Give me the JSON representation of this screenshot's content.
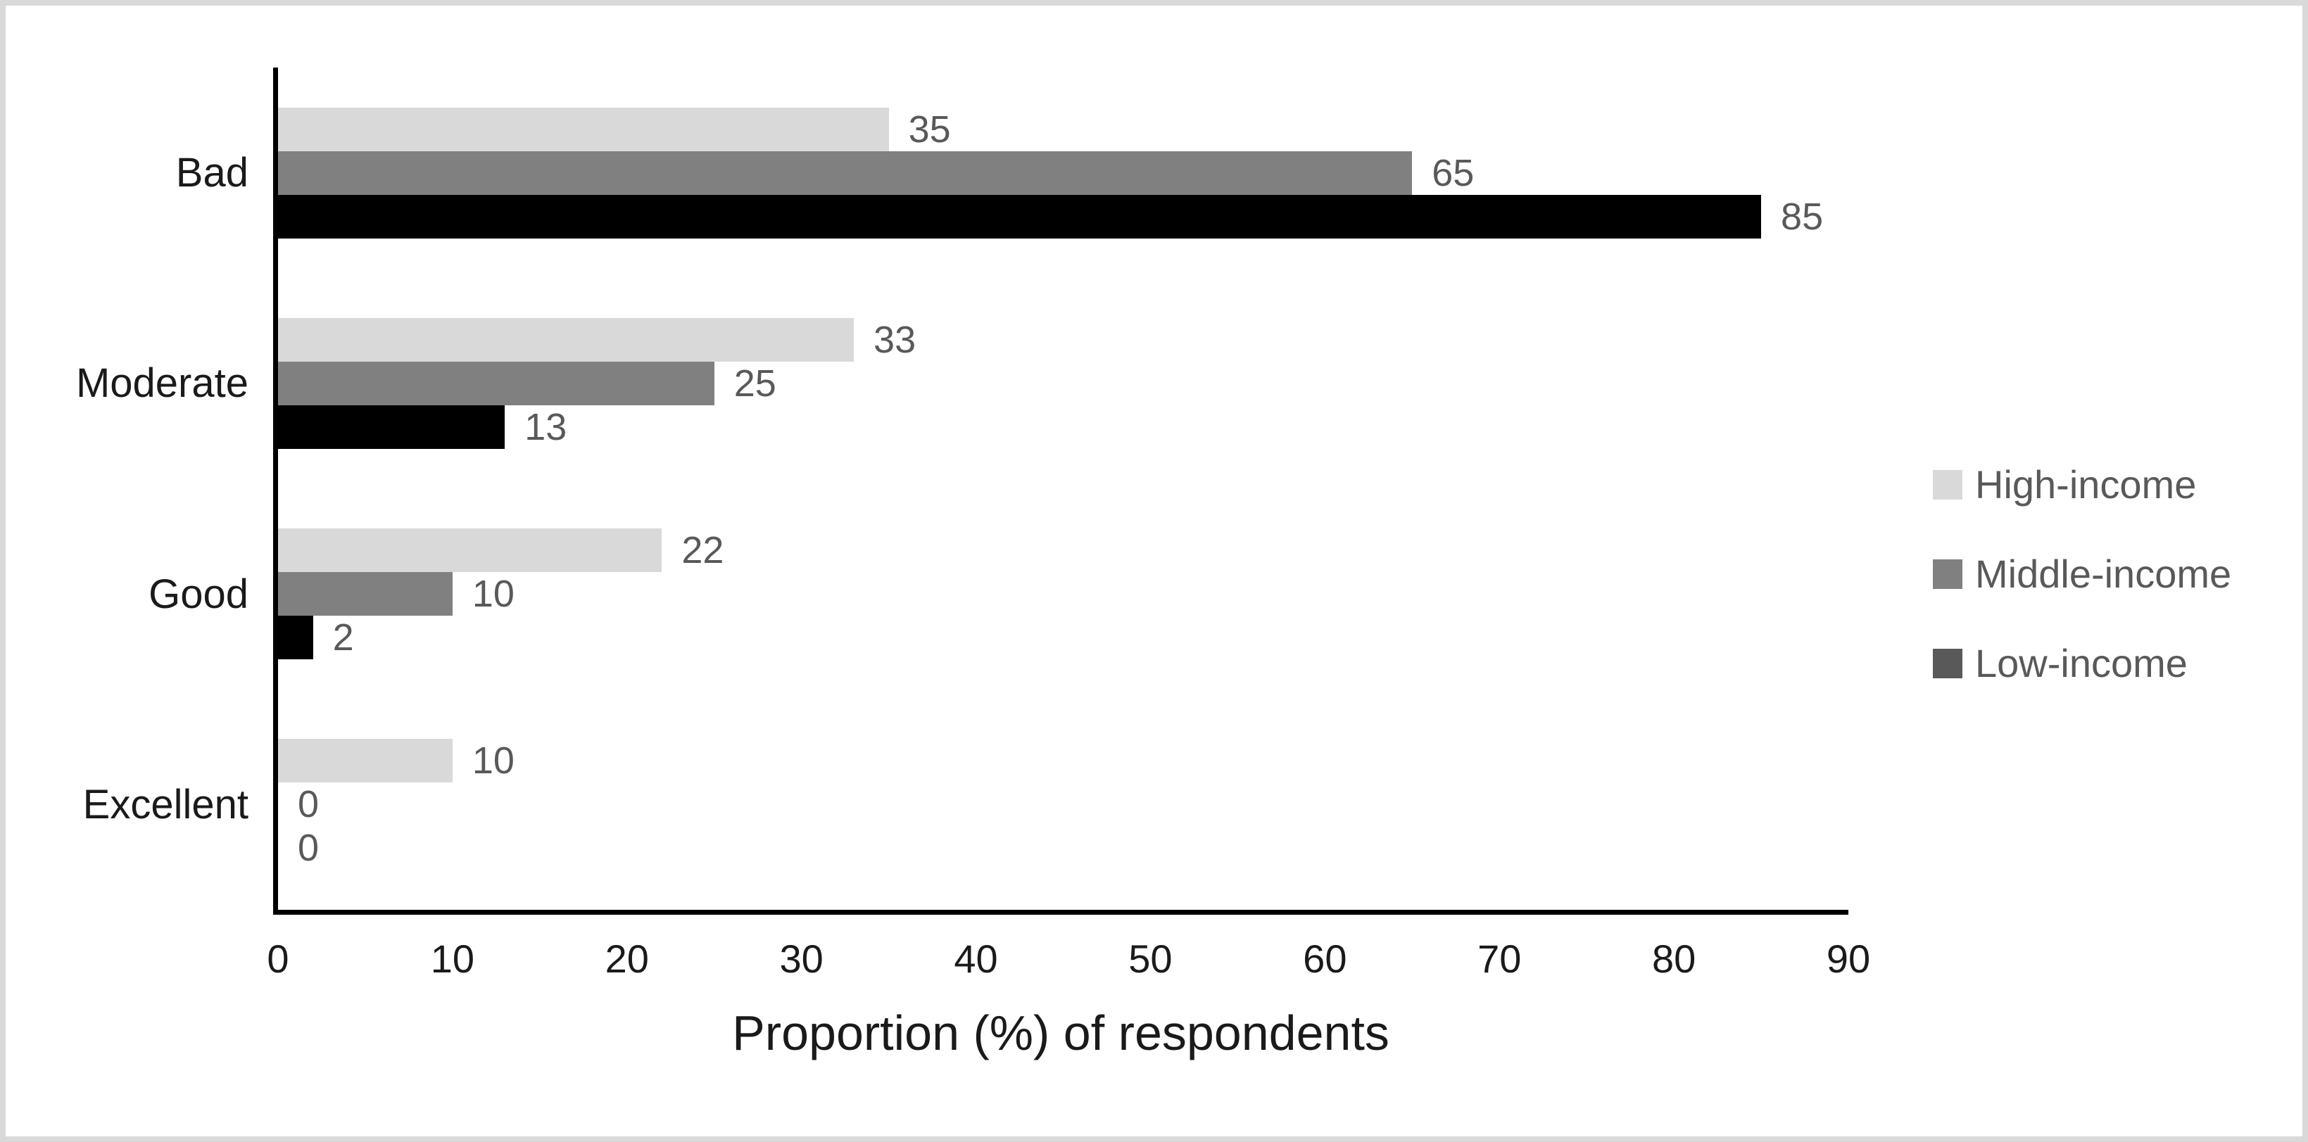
{
  "chart_data": {
    "type": "bar",
    "orientation": "horizontal",
    "title": "",
    "categories": [
      "Bad",
      "Moderate",
      "Good",
      "Excellent"
    ],
    "series": [
      {
        "name": "High-income",
        "color": "#d9d9d9",
        "legend_color": "#d9d9d9",
        "values": [
          35,
          33,
          22,
          10
        ]
      },
      {
        "name": "Middle-income",
        "color": "#808080",
        "legend_color": "#808080",
        "values": [
          65,
          25,
          10,
          0
        ]
      },
      {
        "name": "Low-income",
        "color": "#000000",
        "legend_color": "#595959",
        "values": [
          85,
          13,
          2,
          0
        ]
      }
    ],
    "xlabel": "Proportion (%) of respondents",
    "xlim": [
      0,
      90
    ],
    "xticks": [
      0,
      10,
      20,
      30,
      40,
      50,
      60,
      70,
      80,
      90
    ],
    "grid": false,
    "legend_position": "right",
    "data_labels": true
  },
  "colors": {
    "frame_border": "#d9d9d9",
    "background": "#ffffff",
    "axis_line": "#000000",
    "category_label": "#1a1a1a",
    "tick_label": "#1a1a1a",
    "data_label": "#595959",
    "legend_label": "#595959",
    "axis_title": "#1a1a1a"
  }
}
